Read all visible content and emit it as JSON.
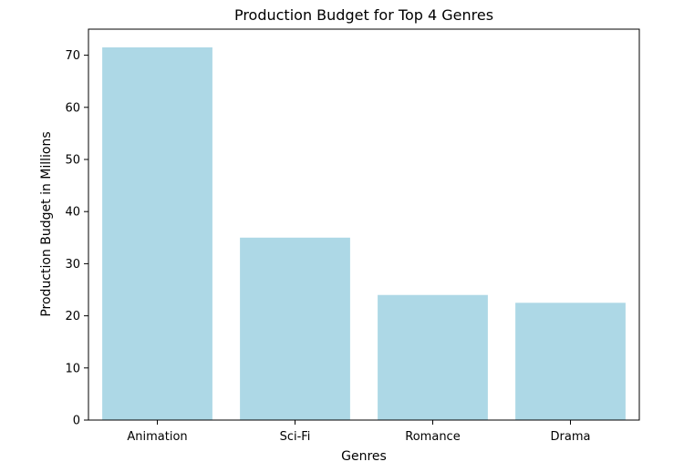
{
  "chart_data": {
    "type": "bar",
    "title": "Production Budget for Top 4 Genres",
    "xlabel": "Genres",
    "ylabel": "Production Budget in Millions",
    "categories": [
      "Animation",
      "Sci-Fi",
      "Romance",
      "Drama"
    ],
    "values": [
      71.5,
      35.0,
      24.0,
      22.5
    ],
    "ylim": [
      0,
      75
    ],
    "yticks": [
      0,
      10,
      20,
      30,
      40,
      50,
      60,
      70
    ],
    "grid": false,
    "bar_color": "#add8e6"
  }
}
